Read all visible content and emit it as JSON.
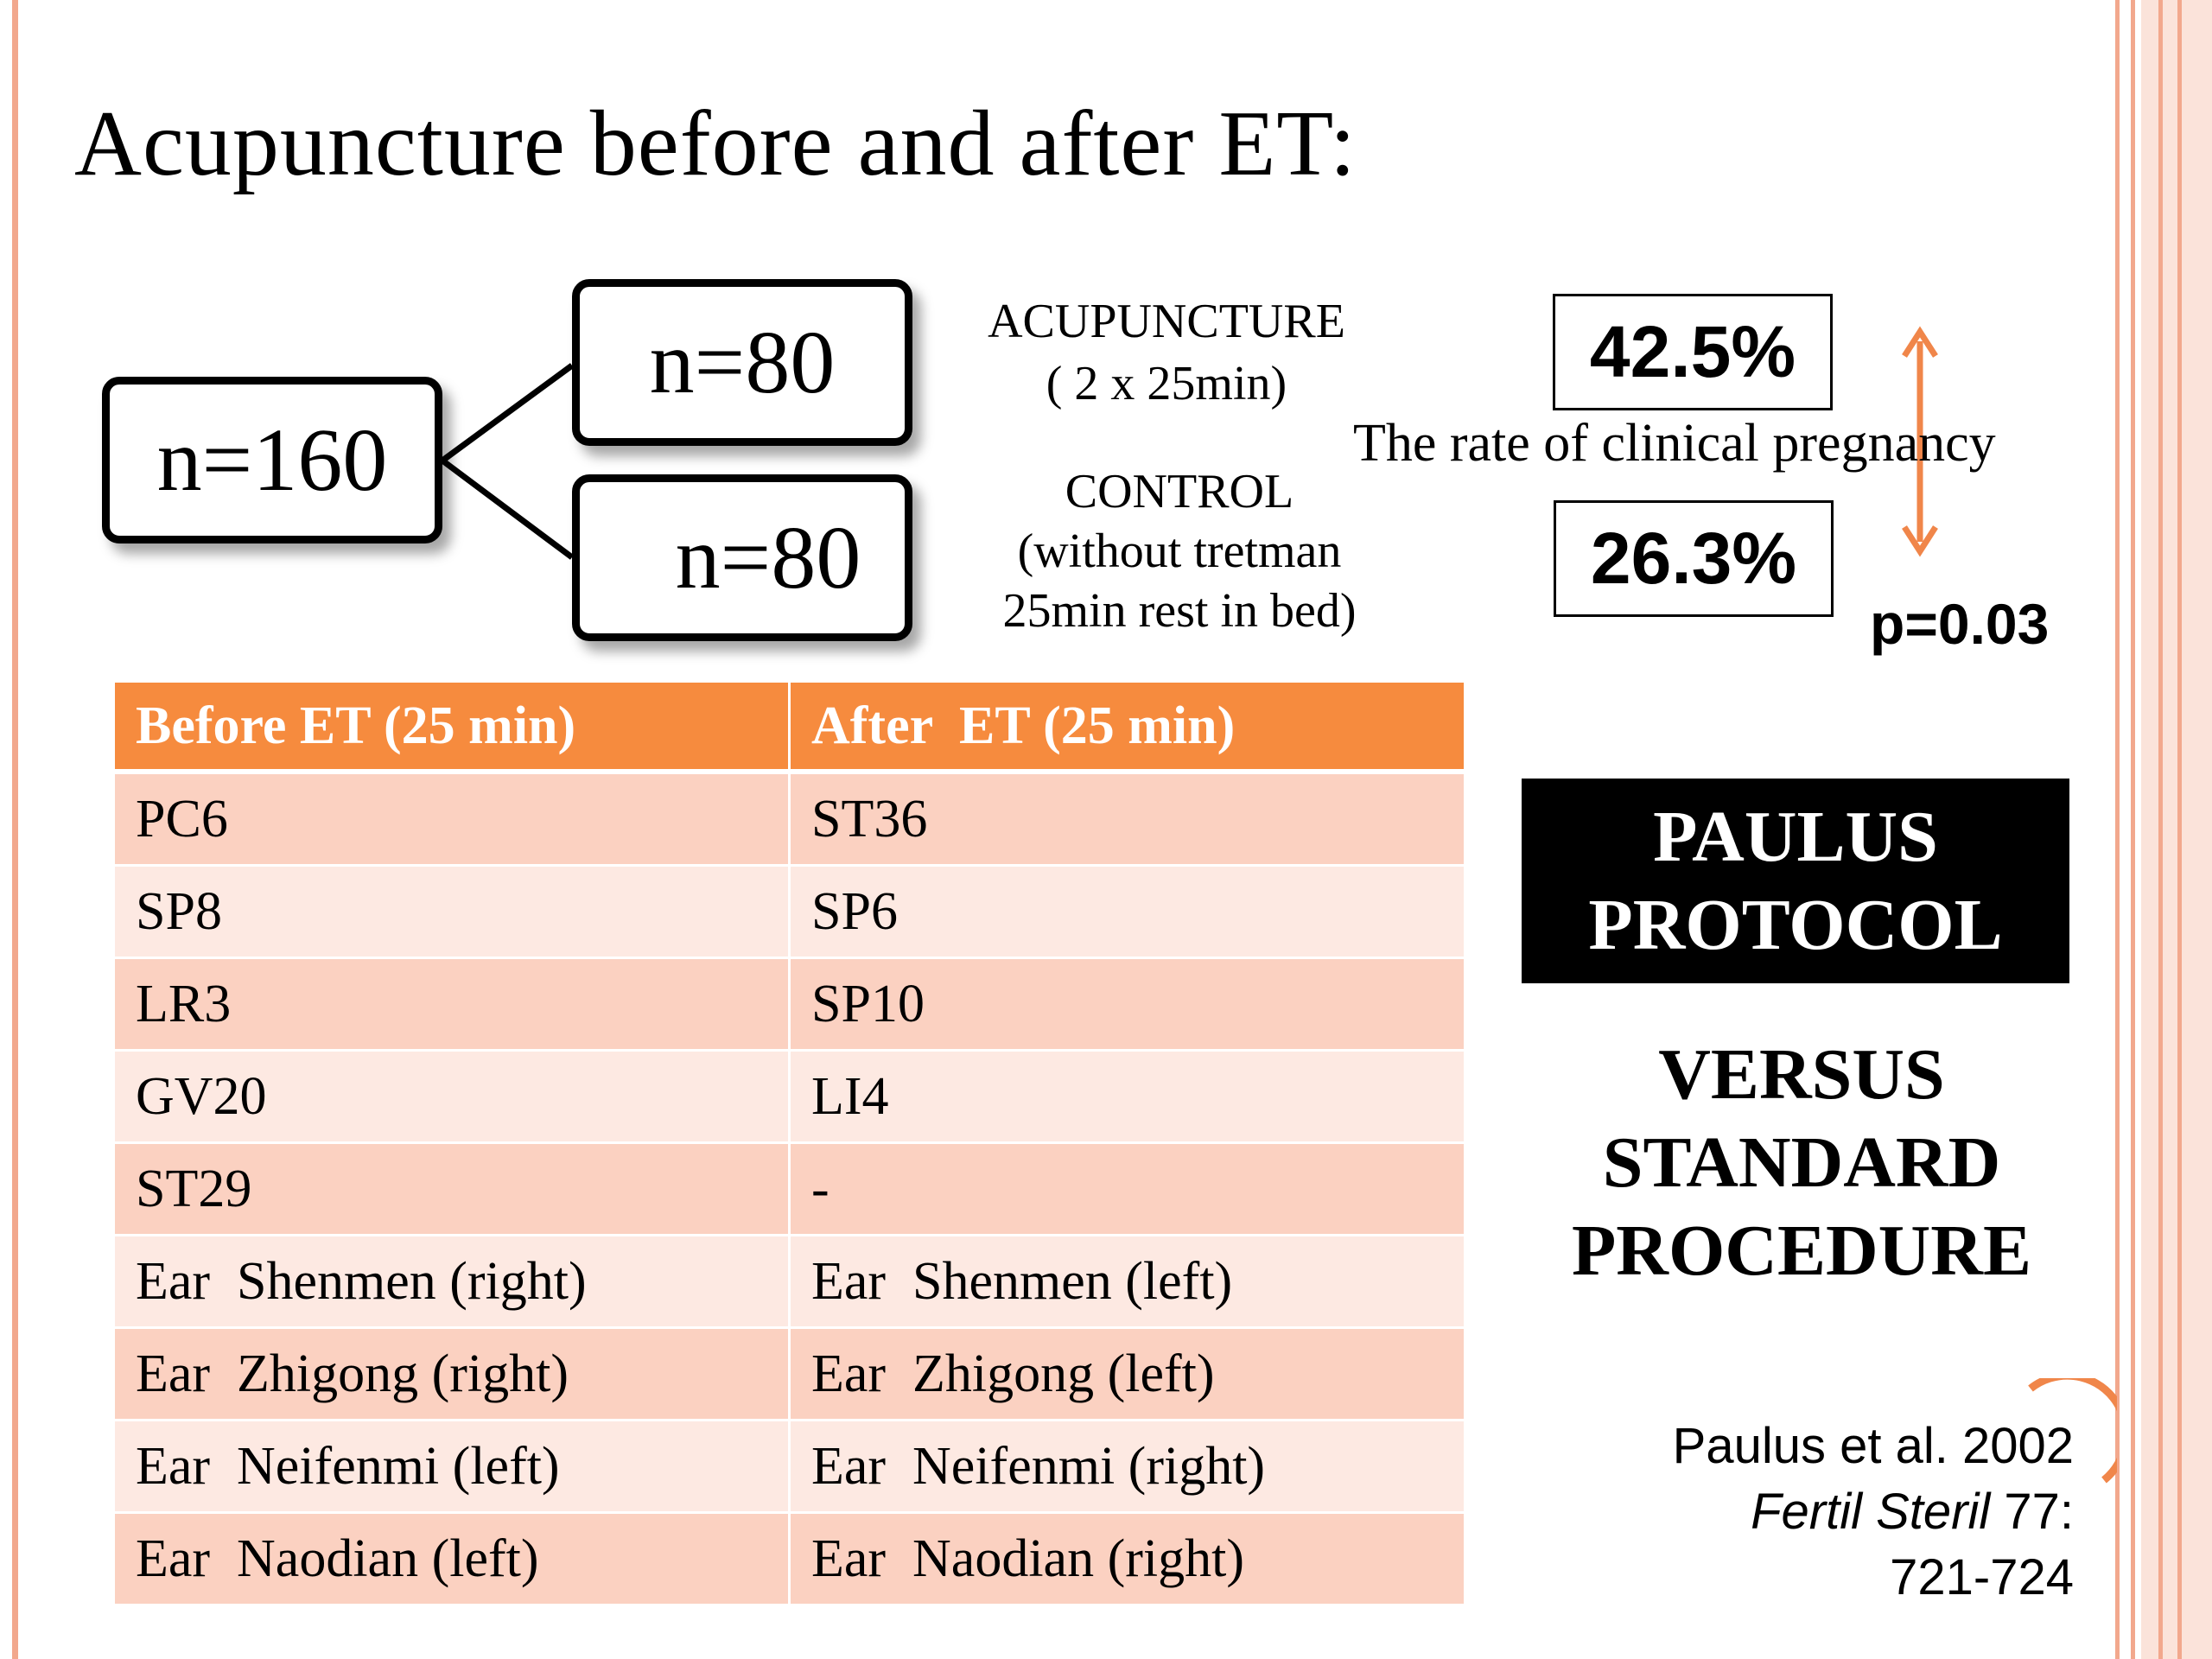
{
  "slide": {
    "title": "Acupuncture before and after ET:"
  },
  "diagram": {
    "total": "n=160",
    "group_a_n": "n=80",
    "group_b_n": "n=80",
    "group_a_name": "ACUPUNCTURE",
    "group_a_detail": "( 2 x 25min)",
    "group_b_name": "CONTROL",
    "group_b_detail1": "(without tretman",
    "group_b_detail2": "25min rest in bed)"
  },
  "results": {
    "rate_a": "42.5%",
    "rate_b": "26.3%",
    "label": "The rate of clinical pregnancy",
    "p_value": "p=0.03"
  },
  "table": {
    "headers": [
      "Before ET (25 min)",
      "After  ET (25 min)"
    ],
    "rows": [
      [
        "PC6",
        "ST36"
      ],
      [
        "SP8",
        "SP6"
      ],
      [
        "LR3",
        "SP10"
      ],
      [
        "GV20",
        "LI4"
      ],
      [
        "ST29",
        "-"
      ],
      [
        "Ear  Shenmen (right)",
        "Ear  Shenmen (left)"
      ],
      [
        "Ear  Zhigong (right)",
        "Ear  Zhigong (left)"
      ],
      [
        "Ear  Neifenmi (left)",
        "Ear  Neifenmi (right)"
      ],
      [
        "Ear  Naodian (left)",
        "Ear  Naodian (right)"
      ]
    ]
  },
  "protocol": {
    "line1": "PAULUS",
    "line2": "PROTOCOL",
    "versus1": "VERSUS",
    "versus2": "STANDARD",
    "versus3": "PROCEDURE"
  },
  "citation": {
    "authors": "Paulus et al. 2002",
    "journal": "Fertil Steril",
    "volume": " 77:",
    "pages": "721-724"
  },
  "colors": {
    "header_orange": "#f68b3e",
    "row_dark": "#fbd1c1",
    "row_light": "#fde9e2",
    "frame": "#f2a88d",
    "arrow": "#f0864a"
  }
}
